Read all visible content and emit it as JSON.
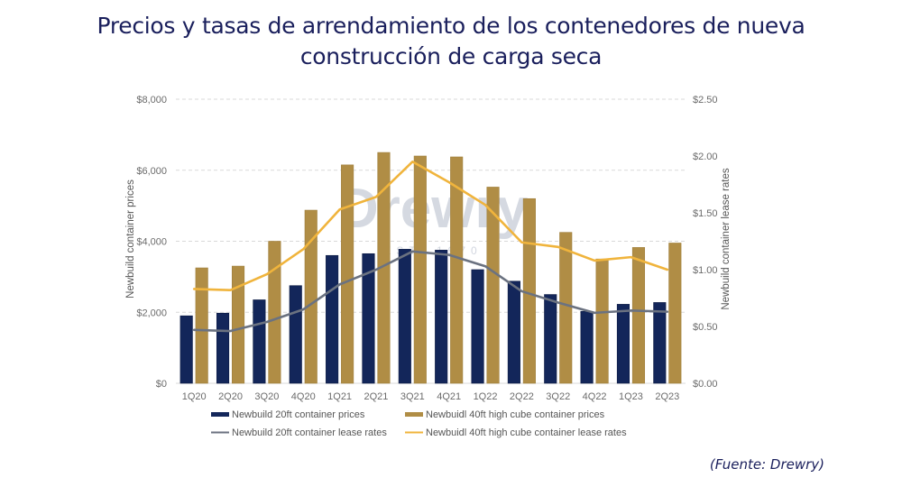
{
  "page": {
    "title_line1": "Precios y tasas de arrendamiento de los contenedores de nueva",
    "title_line2": "construcción de carga seca",
    "source": "(Fuente: Drewry)",
    "watermark": "Drewry",
    "watermark_sub": "EST. 1970"
  },
  "colors": {
    "bar_20ft": "#13265a",
    "bar_40ft": "#b08d45",
    "line_20ft": "#6b7280",
    "line_40ft": "#f0b43c",
    "grid": "#d9d9d9"
  },
  "chart_data": {
    "type": "bar",
    "title": "Precios y tasas de arrendamiento de los contenedores de nueva construcción de carga seca",
    "categories": [
      "1Q20",
      "2Q20",
      "3Q20",
      "4Q20",
      "1Q21",
      "2Q21",
      "3Q21",
      "4Q21",
      "1Q22",
      "2Q22",
      "3Q22",
      "4Q22",
      "1Q23",
      "2Q23"
    ],
    "ylabel": "Newbuild container prices",
    "y2label": "Newbuild container lease rates",
    "ylim": [
      0,
      8000
    ],
    "y2lim": [
      0,
      2.5
    ],
    "yticks": [
      "$0",
      "$2,000",
      "$4,000",
      "$6,000",
      "$8,000"
    ],
    "y2ticks": [
      "$0.00",
      "$0.50",
      "$1.00",
      "$1.50",
      "$2.00",
      "$2.50"
    ],
    "grid": true,
    "legend_position": "bottom",
    "series": [
      {
        "name": "Newbuild 20ft container prices",
        "type": "bar",
        "axis": "left",
        "values": [
          1900,
          1975,
          2350,
          2750,
          3600,
          3650,
          3775,
          3750,
          3200,
          2875,
          2500,
          2025,
          2225,
          2275
        ]
      },
      {
        "name": "Newbuidl 40ft high cube container prices",
        "type": "bar",
        "axis": "left",
        "values": [
          3250,
          3300,
          4000,
          4875,
          6150,
          6500,
          6400,
          6375,
          5525,
          5200,
          4250,
          3500,
          3825,
          3950
        ]
      },
      {
        "name": "Newbuild 20ft container lease rates",
        "type": "line",
        "axis": "right",
        "values": [
          0.47,
          0.46,
          0.54,
          0.65,
          0.87,
          1.0,
          1.16,
          1.13,
          1.03,
          0.81,
          0.71,
          0.62,
          0.64,
          0.63
        ]
      },
      {
        "name": "Newbuidl 40ft high cube container lease rates",
        "type": "line",
        "axis": "right",
        "values": [
          0.83,
          0.82,
          0.96,
          1.18,
          1.53,
          1.64,
          1.95,
          1.77,
          1.57,
          1.24,
          1.2,
          1.08,
          1.11,
          1.0
        ]
      }
    ]
  }
}
